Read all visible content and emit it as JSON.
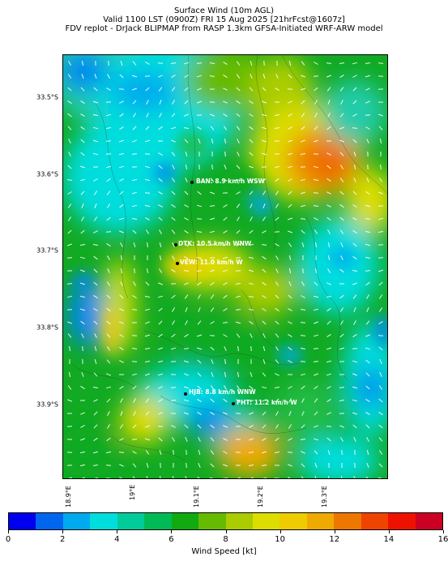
{
  "header": {
    "line1": "Surface Wind (10m AGL)",
    "line2": "Valid 1100 LST (0900Z) FRI 15 Aug 2025 [21hrFcst@1607z]",
    "line3": "FDV replot - DrJack BLIPMAP from RASP 1.3km GFSA-Initiated WRF-ARW model"
  },
  "latitude_labels": [
    "33.5°S",
    "33.6°S",
    "33.7°S",
    "33.8°S",
    "33.9°S"
  ],
  "longitude_labels": [
    "18.9°E",
    "19°E",
    "19.1°E",
    "19.2°E",
    "19.3°E"
  ],
  "stations": [
    {
      "text": "BAN: 8.9 km/h WSW"
    },
    {
      "text": "DTK: 10.5 km/h WNW"
    },
    {
      "text": "VEW: 11.0 km/h W"
    },
    {
      "text": "HJB: 8.8 km/h WNW"
    },
    {
      "text": "FHT: 11.2 km/h W"
    }
  ],
  "colorbar": {
    "label": "Wind Speed [kt]",
    "ticks": [
      "0",
      "2",
      "4",
      "6",
      "8",
      "10",
      "12",
      "14",
      "16"
    ],
    "colors": [
      "#0000ee",
      "#0066ee",
      "#00aaee",
      "#00dddd",
      "#00cc99",
      "#00bb55",
      "#11aa11",
      "#66bb00",
      "#aacc00",
      "#dddd00",
      "#eecc00",
      "#eeaa00",
      "#ee7700",
      "#ee4400",
      "#ee1100",
      "#cc0022"
    ]
  }
}
